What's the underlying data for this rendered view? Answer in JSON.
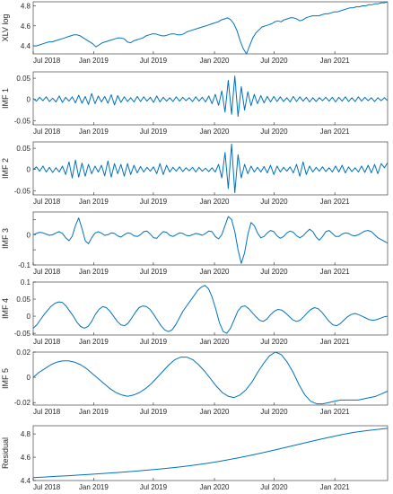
{
  "chart_data": [
    {
      "type": "line",
      "ylabel": "XLV log",
      "ylim": [
        4.32,
        4.84
      ],
      "yticks": [
        4.4,
        4.6,
        4.8
      ],
      "ytick_labels": [
        "4.4",
        "4.6",
        "4.8"
      ],
      "x_ticks": [
        "Jul 2018",
        "Jan 2019",
        "Jul 2019",
        "Jan 2020",
        "Jul 2020",
        "Jan 2021"
      ],
      "series": [
        {
          "values": [
            4.4,
            4.4,
            4.41,
            4.42,
            4.43,
            4.44,
            4.44,
            4.45,
            4.46,
            4.47,
            4.48,
            4.49,
            4.5,
            4.51,
            4.51,
            4.5,
            4.48,
            4.46,
            4.44,
            4.42,
            4.39,
            4.41,
            4.43,
            4.44,
            4.45,
            4.46,
            4.47,
            4.48,
            4.48,
            4.47,
            4.44,
            4.43,
            4.45,
            4.46,
            4.47,
            4.48,
            4.5,
            4.51,
            4.52,
            4.52,
            4.51,
            4.5,
            4.5,
            4.51,
            4.52,
            4.52,
            4.51,
            4.51,
            4.52,
            4.54,
            4.55,
            4.56,
            4.57,
            4.58,
            4.59,
            4.6,
            4.61,
            4.62,
            4.63,
            4.64,
            4.66,
            4.67,
            4.68,
            4.66,
            4.62,
            4.55,
            4.45,
            4.37,
            4.32,
            4.4,
            4.48,
            4.53,
            4.56,
            4.59,
            4.6,
            4.61,
            4.62,
            4.64,
            4.65,
            4.64,
            4.66,
            4.67,
            4.68,
            4.68,
            4.67,
            4.65,
            4.66,
            4.68,
            4.69,
            4.7,
            4.7,
            4.7,
            4.71,
            4.72,
            4.72,
            4.73,
            4.74,
            4.74,
            4.75,
            4.76,
            4.77,
            4.78,
            4.78,
            4.79,
            4.79,
            4.8,
            4.8,
            4.81,
            4.81,
            4.82,
            4.82,
            4.83,
            4.83,
            4.84
          ]
        }
      ]
    },
    {
      "type": "line",
      "ylabel": "IMF 1",
      "ylim": [
        -0.06,
        0.065
      ],
      "yticks": [
        -0.05,
        0,
        0.05
      ],
      "ytick_labels": [
        "-0.05",
        "0",
        "0.05"
      ],
      "x_ticks": [
        "Jul 2018",
        "Jan 2019",
        "Jul 2019",
        "Jan 2020",
        "Jul 2020",
        "Jan 2021"
      ],
      "series": [
        {
          "values": [
            0.002,
            -0.004,
            0.005,
            -0.003,
            0.006,
            -0.005,
            0.003,
            -0.006,
            0.008,
            -0.007,
            0.005,
            -0.004,
            0.006,
            -0.008,
            0.01,
            -0.009,
            0.007,
            -0.012,
            0.014,
            -0.01,
            0.008,
            -0.006,
            0.007,
            -0.009,
            0.011,
            -0.013,
            0.009,
            -0.007,
            0.006,
            -0.005,
            0.004,
            -0.006,
            0.007,
            -0.005,
            0.006,
            -0.004,
            0.005,
            -0.007,
            0.008,
            -0.006,
            0.005,
            -0.004,
            0.004,
            -0.005,
            0.006,
            -0.004,
            0.005,
            -0.003,
            0.004,
            -0.005,
            0.006,
            -0.004,
            0.005,
            -0.006,
            0.008,
            -0.01,
            0.012,
            -0.014,
            0.02,
            -0.03,
            0.045,
            -0.035,
            0.055,
            -0.04,
            0.03,
            -0.025,
            0.018,
            -0.015,
            0.012,
            -0.01,
            0.009,
            -0.008,
            0.007,
            -0.006,
            0.007,
            -0.005,
            0.006,
            -0.005,
            0.004,
            -0.006,
            0.007,
            -0.005,
            0.006,
            -0.004,
            0.005,
            -0.006,
            0.004,
            -0.005,
            0.004,
            -0.003,
            0.005,
            -0.004,
            0.005,
            -0.006,
            0.005,
            -0.004,
            0.006,
            -0.005,
            0.004,
            -0.005,
            0.006,
            -0.004,
            0.005,
            -0.003,
            0.004,
            -0.005,
            0.004,
            -0.003,
            0.004,
            -0.003
          ]
        }
      ]
    },
    {
      "type": "line",
      "ylabel": "IMF 2",
      "ylim": [
        -0.06,
        0.065
      ],
      "yticks": [
        -0.05,
        0,
        0.05
      ],
      "ytick_labels": [
        "-0.05",
        "0",
        "0.05"
      ],
      "x_ticks": [
        "Jul 2018",
        "Jan 2019",
        "Jul 2019",
        "Jan 2020",
        "Jul 2020",
        "Jan 2021"
      ],
      "series": [
        {
          "values": [
            0.0,
            0.006,
            -0.004,
            0.008,
            -0.006,
            0.005,
            -0.007,
            0.004,
            -0.006,
            0.008,
            -0.012,
            0.018,
            -0.02,
            0.022,
            -0.018,
            0.015,
            -0.016,
            0.012,
            -0.01,
            0.008,
            -0.006,
            0.01,
            -0.015,
            0.02,
            -0.018,
            0.014,
            -0.01,
            0.012,
            -0.016,
            0.014,
            -0.012,
            0.01,
            -0.008,
            0.007,
            -0.006,
            0.005,
            -0.004,
            0.006,
            -0.01,
            0.014,
            -0.012,
            0.01,
            -0.006,
            0.005,
            -0.004,
            0.006,
            -0.005,
            0.004,
            -0.003,
            0.005,
            -0.006,
            0.005,
            -0.004,
            0.003,
            -0.005,
            0.004,
            -0.006,
            0.012,
            -0.02,
            0.04,
            -0.045,
            0.06,
            -0.055,
            0.035,
            -0.02,
            0.012,
            -0.01,
            0.008,
            -0.006,
            0.005,
            -0.006,
            0.007,
            -0.008,
            0.01,
            -0.012,
            0.008,
            -0.006,
            0.005,
            -0.004,
            0.006,
            -0.008,
            0.012,
            -0.016,
            0.018,
            -0.012,
            0.008,
            -0.006,
            0.005,
            -0.004,
            0.006,
            -0.005,
            0.004,
            -0.006,
            0.008,
            -0.006,
            0.01,
            -0.008,
            0.006,
            -0.005,
            0.004,
            -0.006,
            0.008,
            -0.007,
            0.01,
            -0.008,
            0.012,
            -0.01,
            0.014,
            0.004,
            0.016
          ]
        }
      ]
    },
    {
      "type": "line",
      "ylabel": "IMF 3",
      "ylim": [
        -0.1,
        0.075
      ],
      "yticks": [
        -0.1,
        -0.05,
        0,
        0.05
      ],
      "ytick_labels": [
        "-0.1",
        "",
        "0",
        ""
      ],
      "x_ticks": [
        "Jul 2018",
        "Jan 2019",
        "Jul 2019",
        "Jan 2020",
        "Jul 2020",
        "Jan 2021"
      ],
      "series": [
        {
          "values": [
            0.0,
            0.004,
            0.008,
            0.006,
            0.002,
            -0.002,
            0.0,
            0.006,
            0.01,
            0.004,
            -0.01,
            -0.02,
            -0.005,
            0.03,
            0.055,
            0.02,
            -0.02,
            -0.03,
            -0.01,
            0.005,
            0.01,
            0.005,
            -0.002,
            0.0,
            0.006,
            0.004,
            -0.004,
            -0.008,
            0.0,
            0.006,
            0.004,
            -0.004,
            -0.006,
            0.0,
            0.01,
            0.012,
            0.002,
            -0.01,
            -0.012,
            0.0,
            0.01,
            0.008,
            -0.002,
            -0.006,
            0.0,
            0.006,
            0.004,
            -0.002,
            -0.004,
            0.0,
            0.004,
            0.002,
            -0.002,
            0.004,
            0.012,
            0.01,
            -0.006,
            -0.014,
            0.0,
            0.03,
            0.06,
            0.05,
            0.01,
            -0.05,
            -0.095,
            -0.06,
            0.0,
            0.04,
            0.03,
            0.006,
            -0.01,
            -0.006,
            0.006,
            0.014,
            0.01,
            -0.004,
            -0.012,
            -0.006,
            0.006,
            0.012,
            0.008,
            -0.004,
            -0.01,
            -0.004,
            0.008,
            0.018,
            0.01,
            -0.008,
            -0.018,
            -0.006,
            0.01,
            0.014,
            0.004,
            -0.006,
            -0.006,
            0.002,
            0.006,
            0.004,
            -0.002,
            -0.004,
            0.0,
            0.006,
            0.012,
            0.014,
            0.01,
            0.0,
            -0.01,
            -0.016,
            -0.022,
            -0.028
          ]
        }
      ]
    },
    {
      "type": "line",
      "ylabel": "IMF 4",
      "ylim": [
        -0.055,
        0.1
      ],
      "yticks": [
        -0.05,
        0,
        0.05,
        0.1
      ],
      "ytick_labels": [
        "-0.05",
        "0",
        "0.05",
        "0.1"
      ],
      "x_ticks": [
        "Jul 2018",
        "Jan 2019",
        "Jul 2019",
        "Jan 2020",
        "Jul 2020",
        "Jan 2021"
      ],
      "series": [
        {
          "values": [
            -0.035,
            -0.025,
            -0.01,
            0.005,
            0.018,
            0.03,
            0.038,
            0.042,
            0.04,
            0.03,
            0.015,
            0.0,
            -0.018,
            -0.03,
            -0.035,
            -0.03,
            -0.015,
            0.005,
            0.02,
            0.028,
            0.025,
            0.015,
            0.0,
            -0.015,
            -0.025,
            -0.028,
            -0.02,
            -0.005,
            0.012,
            0.025,
            0.03,
            0.028,
            0.02,
            0.005,
            -0.012,
            -0.028,
            -0.04,
            -0.045,
            -0.04,
            -0.025,
            -0.005,
            0.015,
            0.03,
            0.045,
            0.06,
            0.075,
            0.085,
            0.09,
            0.08,
            0.055,
            0.02,
            -0.02,
            -0.045,
            -0.05,
            -0.035,
            -0.01,
            0.015,
            0.028,
            0.03,
            0.022,
            0.01,
            -0.002,
            -0.012,
            -0.015,
            -0.008,
            0.005,
            0.015,
            0.02,
            0.018,
            0.01,
            0.0,
            -0.01,
            -0.015,
            -0.012,
            -0.002,
            0.01,
            0.02,
            0.025,
            0.022,
            0.012,
            -0.002,
            -0.015,
            -0.025,
            -0.028,
            -0.022,
            -0.012,
            -0.002,
            0.005,
            0.008,
            0.005,
            0.0,
            -0.005,
            -0.01,
            -0.012,
            -0.01,
            -0.006,
            -0.002,
            0.0
          ]
        }
      ]
    },
    {
      "type": "line",
      "ylabel": "IMF 5",
      "ylim": [
        -0.022,
        0.02
      ],
      "yticks": [
        -0.02,
        0,
        0.02
      ],
      "ytick_labels": [
        "-0.02",
        "0",
        "0.02"
      ],
      "x_ticks": [
        "Jul 2018",
        "Jan 2019",
        "Jul 2019",
        "Jan 2020",
        "Jul 2020",
        "Jan 2021"
      ],
      "series": [
        {
          "values": [
            0.0,
            0.004,
            0.007,
            0.01,
            0.012,
            0.013,
            0.013,
            0.012,
            0.01,
            0.007,
            0.003,
            -0.001,
            -0.005,
            -0.009,
            -0.012,
            -0.014,
            -0.015,
            -0.014,
            -0.012,
            -0.009,
            -0.005,
            0.0,
            0.005,
            0.01,
            0.014,
            0.016,
            0.016,
            0.014,
            0.01,
            0.005,
            -0.001,
            -0.007,
            -0.012,
            -0.015,
            -0.016,
            -0.014,
            -0.01,
            -0.004,
            0.004,
            0.011,
            0.017,
            0.02,
            0.018,
            0.012,
            0.004,
            -0.006,
            -0.014,
            -0.019,
            -0.021,
            -0.021,
            -0.02,
            -0.019,
            -0.018,
            -0.018,
            -0.018,
            -0.018,
            -0.017,
            -0.016,
            -0.015,
            -0.013,
            -0.011
          ]
        }
      ]
    },
    {
      "type": "line",
      "ylabel": "Residual",
      "ylim": [
        4.4,
        4.87
      ],
      "yticks": [
        4.4,
        4.6,
        4.8
      ],
      "ytick_labels": [
        "4.4",
        "4.6",
        "4.8"
      ],
      "x_ticks": [
        "Jul 2018",
        "Jan 2019",
        "Jul 2019",
        "Jan 2020",
        "Jul 2020",
        "Jan 2021"
      ],
      "series": [
        {
          "values": [
            4.425,
            4.43,
            4.436,
            4.441,
            4.447,
            4.453,
            4.459,
            4.466,
            4.473,
            4.481,
            4.489,
            4.498,
            4.508,
            4.519,
            4.531,
            4.545,
            4.56,
            4.577,
            4.596,
            4.616,
            4.637,
            4.659,
            4.682,
            4.705,
            4.728,
            4.751,
            4.773,
            4.794,
            4.812,
            4.826,
            4.838,
            4.848
          ]
        }
      ]
    }
  ]
}
